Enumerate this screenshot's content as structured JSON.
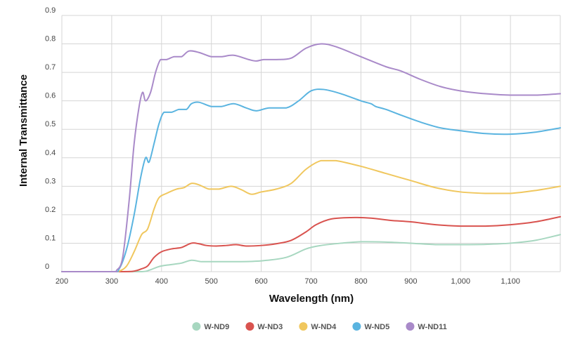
{
  "chart_data": {
    "type": "line",
    "title": "",
    "xlabel": "Wavelength (nm)",
    "ylabel": "Internal Transmittance",
    "xlim": [
      200,
      1200
    ],
    "ylim": [
      0,
      0.9
    ],
    "x_ticks": [
      200,
      300,
      400,
      500,
      600,
      700,
      800,
      900,
      1000,
      1100
    ],
    "x_tick_labels": [
      "200",
      "300",
      "400",
      "500",
      "600",
      "700",
      "800",
      "900",
      "1,000",
      "1,100"
    ],
    "y_ticks": [
      0,
      0.1,
      0.2,
      0.3,
      0.4,
      0.5,
      0.6,
      0.7,
      0.8,
      0.9
    ],
    "y_tick_labels": [
      "0",
      "0.1",
      "0.2",
      "0.3",
      "0.4",
      "0.5",
      "0.6",
      "0.7",
      "0.8",
      "0.9"
    ],
    "grid": true,
    "legend_position": "bottom-center",
    "series": [
      {
        "name": "W-ND9",
        "color": "#a7d7c0",
        "points": [
          [
            200,
            0
          ],
          [
            300,
            0
          ],
          [
            360,
            0
          ],
          [
            375,
            0.005
          ],
          [
            390,
            0.015
          ],
          [
            400,
            0.02
          ],
          [
            420,
            0.025
          ],
          [
            440,
            0.03
          ],
          [
            460,
            0.04
          ],
          [
            480,
            0.035
          ],
          [
            500,
            0.035
          ],
          [
            550,
            0.035
          ],
          [
            600,
            0.038
          ],
          [
            650,
            0.05
          ],
          [
            690,
            0.08
          ],
          [
            720,
            0.092
          ],
          [
            760,
            0.1
          ],
          [
            800,
            0.105
          ],
          [
            850,
            0.104
          ],
          [
            900,
            0.1
          ],
          [
            950,
            0.095
          ],
          [
            1000,
            0.095
          ],
          [
            1050,
            0.096
          ],
          [
            1100,
            0.1
          ],
          [
            1150,
            0.11
          ],
          [
            1200,
            0.13
          ]
        ]
      },
      {
        "name": "W-ND3",
        "color": "#d9534f",
        "points": [
          [
            200,
            0
          ],
          [
            320,
            0
          ],
          [
            345,
            0.002
          ],
          [
            360,
            0.01
          ],
          [
            372,
            0.02
          ],
          [
            385,
            0.05
          ],
          [
            400,
            0.07
          ],
          [
            420,
            0.08
          ],
          [
            440,
            0.085
          ],
          [
            460,
            0.1
          ],
          [
            475,
            0.098
          ],
          [
            490,
            0.092
          ],
          [
            510,
            0.09
          ],
          [
            530,
            0.092
          ],
          [
            550,
            0.095
          ],
          [
            570,
            0.09
          ],
          [
            600,
            0.092
          ],
          [
            630,
            0.098
          ],
          [
            660,
            0.11
          ],
          [
            690,
            0.14
          ],
          [
            710,
            0.165
          ],
          [
            740,
            0.185
          ],
          [
            780,
            0.19
          ],
          [
            820,
            0.188
          ],
          [
            860,
            0.18
          ],
          [
            900,
            0.175
          ],
          [
            950,
            0.165
          ],
          [
            1000,
            0.16
          ],
          [
            1050,
            0.16
          ],
          [
            1100,
            0.165
          ],
          [
            1150,
            0.175
          ],
          [
            1200,
            0.193
          ]
        ]
      },
      {
        "name": "W-ND4",
        "color": "#f0c75e",
        "points": [
          [
            200,
            0
          ],
          [
            300,
            0
          ],
          [
            315,
            0.002
          ],
          [
            330,
            0.02
          ],
          [
            345,
            0.07
          ],
          [
            360,
            0.13
          ],
          [
            372,
            0.15
          ],
          [
            385,
            0.22
          ],
          [
            395,
            0.26
          ],
          [
            410,
            0.275
          ],
          [
            430,
            0.29
          ],
          [
            445,
            0.295
          ],
          [
            460,
            0.31
          ],
          [
            475,
            0.305
          ],
          [
            495,
            0.29
          ],
          [
            515,
            0.29
          ],
          [
            540,
            0.3
          ],
          [
            560,
            0.288
          ],
          [
            580,
            0.272
          ],
          [
            600,
            0.28
          ],
          [
            630,
            0.29
          ],
          [
            660,
            0.31
          ],
          [
            690,
            0.36
          ],
          [
            720,
            0.39
          ],
          [
            750,
            0.39
          ],
          [
            800,
            0.37
          ],
          [
            850,
            0.345
          ],
          [
            900,
            0.32
          ],
          [
            950,
            0.295
          ],
          [
            1000,
            0.28
          ],
          [
            1050,
            0.275
          ],
          [
            1100,
            0.275
          ],
          [
            1150,
            0.285
          ],
          [
            1200,
            0.3
          ]
        ]
      },
      {
        "name": "W-ND5",
        "color": "#5ab4e0",
        "points": [
          [
            200,
            0
          ],
          [
            300,
            0
          ],
          [
            315,
            0.01
          ],
          [
            330,
            0.08
          ],
          [
            345,
            0.2
          ],
          [
            358,
            0.33
          ],
          [
            368,
            0.4
          ],
          [
            375,
            0.385
          ],
          [
            385,
            0.45
          ],
          [
            395,
            0.52
          ],
          [
            405,
            0.56
          ],
          [
            420,
            0.56
          ],
          [
            435,
            0.57
          ],
          [
            450,
            0.57
          ],
          [
            460,
            0.59
          ],
          [
            475,
            0.595
          ],
          [
            500,
            0.58
          ],
          [
            520,
            0.58
          ],
          [
            545,
            0.59
          ],
          [
            570,
            0.575
          ],
          [
            590,
            0.565
          ],
          [
            615,
            0.575
          ],
          [
            650,
            0.575
          ],
          [
            675,
            0.6
          ],
          [
            700,
            0.635
          ],
          [
            725,
            0.64
          ],
          [
            760,
            0.625
          ],
          [
            800,
            0.6
          ],
          [
            820,
            0.59
          ],
          [
            830,
            0.58
          ],
          [
            850,
            0.57
          ],
          [
            880,
            0.55
          ],
          [
            920,
            0.525
          ],
          [
            960,
            0.505
          ],
          [
            1000,
            0.495
          ],
          [
            1050,
            0.485
          ],
          [
            1100,
            0.483
          ],
          [
            1150,
            0.49
          ],
          [
            1200,
            0.505
          ]
        ]
      },
      {
        "name": "W-ND11",
        "color": "#a98ac9",
        "points": [
          [
            200,
            0
          ],
          [
            300,
            0
          ],
          [
            310,
            0.005
          ],
          [
            322,
            0.05
          ],
          [
            335,
            0.25
          ],
          [
            345,
            0.45
          ],
          [
            355,
            0.58
          ],
          [
            362,
            0.63
          ],
          [
            368,
            0.6
          ],
          [
            378,
            0.63
          ],
          [
            388,
            0.7
          ],
          [
            398,
            0.745
          ],
          [
            410,
            0.745
          ],
          [
            425,
            0.755
          ],
          [
            440,
            0.755
          ],
          [
            455,
            0.775
          ],
          [
            475,
            0.77
          ],
          [
            500,
            0.755
          ],
          [
            520,
            0.755
          ],
          [
            545,
            0.76
          ],
          [
            575,
            0.745
          ],
          [
            590,
            0.74
          ],
          [
            605,
            0.745
          ],
          [
            630,
            0.745
          ],
          [
            660,
            0.75
          ],
          [
            690,
            0.785
          ],
          [
            720,
            0.8
          ],
          [
            750,
            0.79
          ],
          [
            800,
            0.755
          ],
          [
            850,
            0.72
          ],
          [
            880,
            0.705
          ],
          [
            920,
            0.675
          ],
          [
            960,
            0.65
          ],
          [
            1000,
            0.635
          ],
          [
            1050,
            0.625
          ],
          [
            1100,
            0.62
          ],
          [
            1150,
            0.62
          ],
          [
            1200,
            0.625
          ]
        ]
      }
    ]
  }
}
